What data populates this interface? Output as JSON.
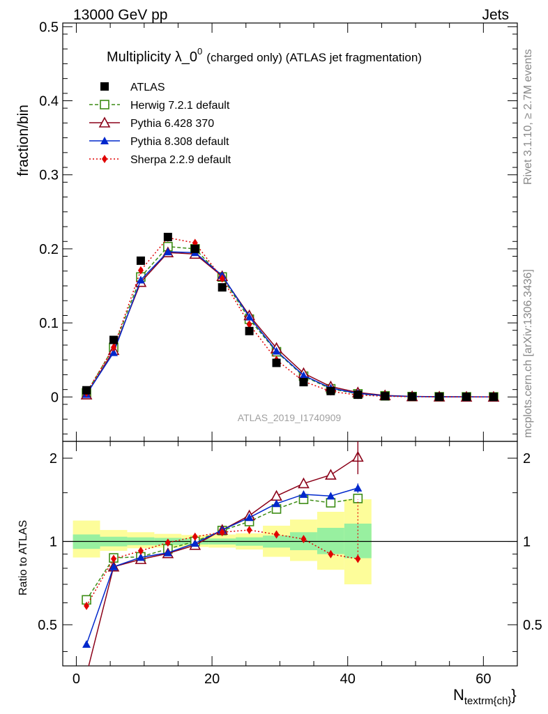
{
  "header": {
    "left": "13000 GeV pp",
    "right": "Jets"
  },
  "side_labels": {
    "rivet": "Rivet 3.1.10, ≥ 2.7M events",
    "mcplots": "mcplots.cern.ch [arXiv:1306.3436]"
  },
  "chart_data": {
    "type": "line",
    "title": "Multiplicity λ_0",
    "title_sup": "0",
    "title_suffix": "(charged only) (ATLAS jet fragmentation)",
    "watermark": "ATLAS_2019_I1740909",
    "xlabel": "N",
    "xlabel_sub": "textrm{ch}",
    "xlabel_close": "}",
    "ylabel": "fraction/bin",
    "ratio_ylabel": "Ratio to ATLAS",
    "xlim": [
      -2,
      65
    ],
    "ylim": [
      -0.06,
      0.505
    ],
    "ratio_ylim": [
      0.355,
      2.3
    ],
    "ratio_log": true,
    "grid": false,
    "legend_position": "top-left",
    "x_ticks": [
      "0",
      "20",
      "40",
      "60"
    ],
    "y_ticks": [
      "0",
      "0.1",
      "0.2",
      "0.3",
      "0.4",
      "0.5"
    ],
    "ratio_ticks": [
      "0.5",
      "1",
      "2"
    ],
    "x": [
      1.5,
      5.5,
      9.5,
      13.5,
      17.5,
      21.5,
      25.5,
      29.5,
      33.5,
      37.5,
      41.5,
      45.5,
      49.5,
      53.5,
      57.5,
      61.5
    ],
    "data": {
      "name": "ATLAS",
      "values": [
        0.009,
        0.077,
        0.184,
        0.216,
        0.2,
        0.148,
        0.089,
        0.046,
        0.02,
        0.008,
        0.003,
        0.001,
        0.0004,
        0.0002,
        0.0001,
        4e-05
      ]
    },
    "uncertainty_bands": {
      "edges": [
        -0.5,
        3.5,
        7.5,
        11.5,
        15.5,
        19.5,
        23.5,
        27.5,
        31.5,
        35.5,
        39.5,
        43.5
      ],
      "stat_lo": [
        0.94,
        0.96,
        0.97,
        0.97,
        0.975,
        0.975,
        0.965,
        0.95,
        0.93,
        0.9,
        0.87
      ],
      "stat_hi": [
        1.06,
        1.04,
        1.035,
        1.03,
        1.025,
        1.025,
        1.035,
        1.05,
        1.08,
        1.12,
        1.16
      ],
      "tot_lo": [
        0.875,
        0.925,
        0.945,
        0.95,
        0.955,
        0.95,
        0.935,
        0.88,
        0.85,
        0.79,
        0.7
      ],
      "tot_hi": [
        1.19,
        1.1,
        1.08,
        1.065,
        1.055,
        1.06,
        1.07,
        1.14,
        1.2,
        1.28,
        1.42
      ]
    },
    "series": [
      {
        "name": "Herwig 7.2.1 default",
        "color": "#3c8c14",
        "marker": "open-square",
        "dash": "5,3",
        "values": [
          0.0055,
          0.067,
          0.162,
          0.203,
          0.2,
          0.162,
          0.105,
          0.061,
          0.028,
          0.011,
          0.0042,
          0.0015,
          0.0005,
          0.0002,
          0.0001,
          5e-05
        ],
        "ratio": [
          0.615,
          0.872,
          0.88,
          0.94,
          1.0,
          1.095,
          1.18,
          1.31,
          1.42,
          1.38,
          1.43
        ]
      },
      {
        "name": "Pythia 6.428 370",
        "color": "#8b0018",
        "marker": "open-triangle",
        "dash": "",
        "values": [
          0.003,
          0.063,
          0.155,
          0.195,
          0.193,
          0.163,
          0.11,
          0.066,
          0.032,
          0.014,
          0.006,
          0.002,
          0.0007,
          0.0003,
          0.0001,
          5e-05
        ],
        "ratio": [
          0.33,
          0.81,
          0.862,
          0.905,
          0.97,
          1.1,
          1.24,
          1.46,
          1.62,
          1.74,
          2.02
        ]
      },
      {
        "name": "Pythia 8.308 default",
        "color": "#0028cc",
        "marker": "filled-triangle",
        "dash": "",
        "values": [
          0.0035,
          0.06,
          0.158,
          0.196,
          0.195,
          0.164,
          0.108,
          0.062,
          0.029,
          0.012,
          0.0047,
          0.0016,
          0.0006,
          0.0002,
          0.0001,
          5e-05
        ],
        "ratio": [
          0.425,
          0.81,
          0.876,
          0.91,
          0.985,
          1.1,
          1.22,
          1.37,
          1.48,
          1.46,
          1.56
        ]
      },
      {
        "name": "Sherpa 2.2.9 default",
        "color": "#e00000",
        "marker": "filled-diamond",
        "dash": "2,3",
        "values": [
          0.0055,
          0.067,
          0.171,
          0.215,
          0.208,
          0.16,
          0.098,
          0.05,
          0.021,
          0.0075,
          0.0026,
          0.0009,
          0.0003,
          0.0001,
          5e-05,
          2e-05
        ],
        "ratio": [
          0.585,
          0.865,
          0.925,
          0.99,
          1.04,
          1.08,
          1.1,
          1.06,
          1.02,
          0.9,
          0.865
        ]
      }
    ]
  }
}
